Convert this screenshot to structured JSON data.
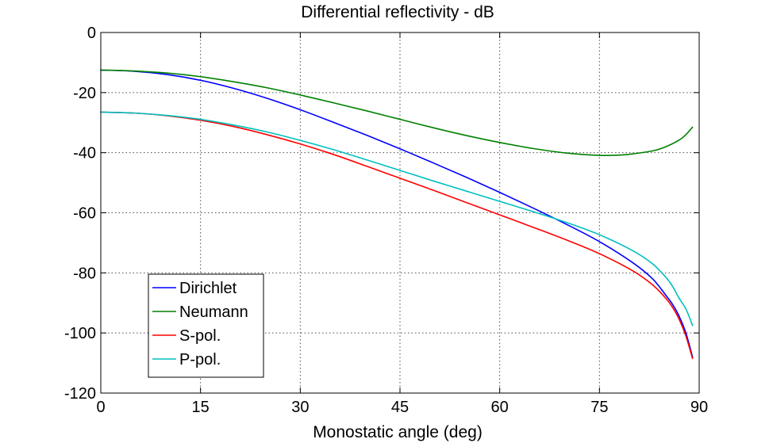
{
  "chart_data": {
    "type": "line",
    "title": "Differential reflectivity - dB",
    "xlabel": "Monostatic angle (deg)",
    "ylabel": "",
    "xlim": [
      0,
      90
    ],
    "ylim": [
      -120,
      0
    ],
    "xticks": [
      0,
      15,
      30,
      45,
      60,
      75,
      90
    ],
    "yticks": [
      0,
      -20,
      -40,
      -60,
      -80,
      -100,
      -120
    ],
    "xtick_labels": [
      "0",
      "15",
      "30",
      "45",
      "60",
      "75",
      "90"
    ],
    "ytick_labels": [
      "0",
      "-20",
      "-40",
      "-60",
      "-80",
      "-100",
      "-120"
    ],
    "grid": true,
    "legend_position": "bottom-left",
    "series": [
      {
        "name": "Dirichlet",
        "color": "#0000ff",
        "x": [
          0,
          5,
          10,
          15,
          20,
          25,
          30,
          35,
          40,
          45,
          50,
          55,
          60,
          65,
          70,
          75,
          80,
          83,
          85,
          86,
          87,
          88,
          89
        ],
        "y": [
          -12.5,
          -12.9,
          -14.0,
          -15.9,
          -18.6,
          -21.9,
          -25.7,
          -29.9,
          -34.2,
          -38.7,
          -43.4,
          -48.2,
          -53.2,
          -58.4,
          -63.8,
          -69.6,
          -76.6,
          -82.0,
          -87.5,
          -90.5,
          -94.5,
          -100.0,
          -108.0
        ]
      },
      {
        "name": "Neumann",
        "color": "#008000",
        "x": [
          0,
          5,
          10,
          15,
          20,
          25,
          30,
          35,
          40,
          45,
          50,
          55,
          60,
          65,
          70,
          75,
          78,
          80,
          83,
          85,
          87,
          88,
          89
        ],
        "y": [
          -12.5,
          -12.8,
          -13.5,
          -14.7,
          -16.4,
          -18.4,
          -20.8,
          -23.4,
          -26.1,
          -28.9,
          -31.7,
          -34.3,
          -36.6,
          -38.6,
          -40.1,
          -40.9,
          -40.8,
          -40.4,
          -39.4,
          -38.0,
          -35.8,
          -34.0,
          -31.5
        ]
      },
      {
        "name": "S-pol.",
        "color": "#ff0000",
        "x": [
          0,
          5,
          10,
          15,
          20,
          25,
          30,
          35,
          40,
          45,
          50,
          55,
          60,
          65,
          70,
          75,
          80,
          83,
          85,
          86,
          87,
          88,
          89
        ],
        "y": [
          -26.5,
          -26.8,
          -27.7,
          -29.2,
          -31.3,
          -34.0,
          -37.1,
          -40.6,
          -44.5,
          -48.5,
          -52.5,
          -56.6,
          -60.7,
          -64.8,
          -69.0,
          -73.6,
          -79.3,
          -84.0,
          -88.5,
          -91.5,
          -95.5,
          -101.0,
          -108.5
        ]
      },
      {
        "name": "P-pol.",
        "color": "#00bfbf",
        "x": [
          0,
          5,
          10,
          15,
          20,
          25,
          30,
          35,
          40,
          45,
          50,
          55,
          60,
          65,
          70,
          75,
          80,
          83,
          85,
          86,
          87,
          88,
          89
        ],
        "y": [
          -26.5,
          -26.8,
          -27.6,
          -28.9,
          -30.8,
          -33.1,
          -35.9,
          -39.0,
          -42.4,
          -45.9,
          -49.4,
          -52.8,
          -56.2,
          -59.6,
          -63.2,
          -67.3,
          -72.6,
          -77.0,
          -81.5,
          -84.5,
          -88.5,
          -92.0,
          -97.5
        ]
      }
    ]
  }
}
